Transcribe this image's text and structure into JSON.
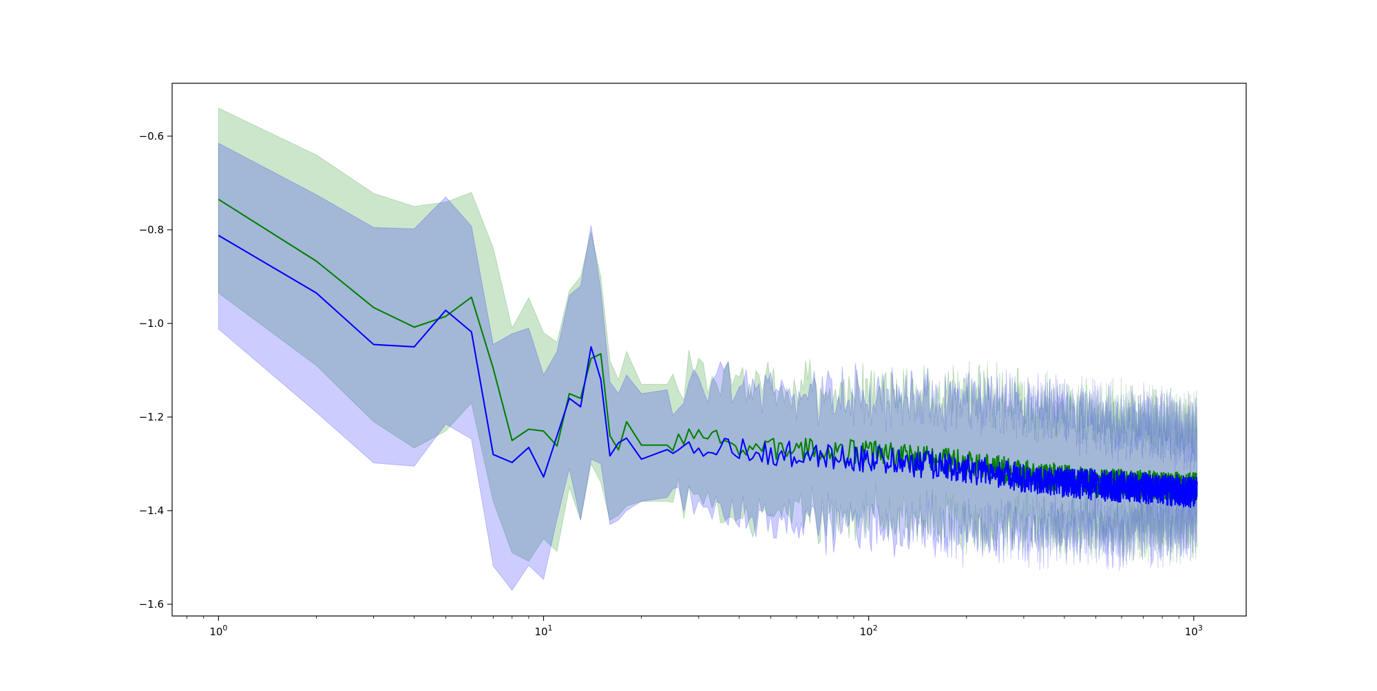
{
  "chart_data": {
    "type": "line",
    "title": "",
    "xlabel": "",
    "ylabel": "",
    "xscale": "log",
    "xlim": [
      0.72,
      1450
    ],
    "ylim": [
      -1.625,
      -0.487
    ],
    "grid": false,
    "legend": "none",
    "x_ticks": [
      {
        "value": 1,
        "base": "10",
        "exp": "0"
      },
      {
        "value": 10,
        "base": "10",
        "exp": "1"
      },
      {
        "value": 100,
        "base": "10",
        "exp": "2"
      },
      {
        "value": 1000,
        "base": "10",
        "exp": "3"
      }
    ],
    "y_ticks": [
      {
        "value": -0.6,
        "label": "−0.6"
      },
      {
        "value": -0.8,
        "label": "−0.8"
      },
      {
        "value": -1.0,
        "label": "−1.0"
      },
      {
        "value": -1.2,
        "label": "−1.2"
      },
      {
        "value": -1.4,
        "label": "−1.4"
      },
      {
        "value": -1.6,
        "label": "−1.6"
      }
    ],
    "series": [
      {
        "color": "#008000",
        "band_color": "#008000",
        "band_opacity": 0.2,
        "anchors_x": [
          1,
          2,
          3,
          4,
          5,
          6,
          7,
          8,
          9,
          10,
          11,
          12,
          13,
          14,
          15,
          16,
          17,
          18,
          20,
          25,
          30,
          40,
          60,
          100,
          200,
          300,
          500,
          1000
        ],
        "anchors_mean": [
          -0.735,
          -0.867,
          -0.966,
          -1.008,
          -0.985,
          -0.944,
          -1.096,
          -1.25,
          -1.226,
          -1.23,
          -1.262,
          -1.15,
          -1.16,
          -1.075,
          -1.065,
          -1.24,
          -1.27,
          -1.21,
          -1.26,
          -1.26,
          -1.24,
          -1.265,
          -1.27,
          -1.275,
          -1.3,
          -1.32,
          -1.34,
          -1.35
        ],
        "anchors_upper": [
          -0.54,
          -0.64,
          -0.722,
          -0.75,
          -0.741,
          -0.72,
          -0.838,
          -1.01,
          -0.945,
          -1.02,
          -1.04,
          -0.93,
          -0.9,
          -0.805,
          -0.9,
          -1.08,
          -1.12,
          -1.06,
          -1.13,
          -1.13,
          -1.11,
          -1.13,
          -1.14,
          -1.15,
          -1.15,
          -1.17,
          -1.19,
          -1.22
        ],
        "anchors_lower": [
          -0.935,
          -1.09,
          -1.21,
          -1.266,
          -1.23,
          -1.17,
          -1.38,
          -1.49,
          -1.508,
          -1.46,
          -1.487,
          -1.35,
          -1.42,
          -1.3,
          -1.34,
          -1.42,
          -1.41,
          -1.39,
          -1.38,
          -1.38,
          -1.37,
          -1.41,
          -1.41,
          -1.41,
          -1.43,
          -1.43,
          -1.44,
          -1.43
        ],
        "noise_amp": 0.022,
        "seed": 7
      },
      {
        "color": "#0000ff",
        "band_color": "#0000ff",
        "band_opacity": 0.2,
        "anchors_x": [
          1,
          2,
          3,
          4,
          5,
          6,
          7,
          8,
          9,
          10,
          11,
          12,
          13,
          14,
          15,
          16,
          17,
          18,
          20,
          25,
          30,
          40,
          60,
          100,
          200,
          300,
          500,
          1000
        ],
        "anchors_mean": [
          -0.812,
          -0.935,
          -1.045,
          -1.05,
          -0.972,
          -1.018,
          -1.28,
          -1.297,
          -1.265,
          -1.328,
          -1.24,
          -1.16,
          -1.178,
          -1.05,
          -1.12,
          -1.283,
          -1.255,
          -1.245,
          -1.29,
          -1.265,
          -1.26,
          -1.27,
          -1.28,
          -1.29,
          -1.31,
          -1.33,
          -1.345,
          -1.36
        ],
        "anchors_upper": [
          -0.615,
          -0.725,
          -0.795,
          -0.798,
          -0.73,
          -0.792,
          -1.045,
          -1.022,
          -1.01,
          -1.11,
          -1.06,
          -0.94,
          -0.92,
          -0.79,
          -0.93,
          -1.125,
          -1.15,
          -1.11,
          -1.15,
          -1.14,
          -1.12,
          -1.13,
          -1.15,
          -1.16,
          -1.16,
          -1.18,
          -1.2,
          -1.23
        ],
        "anchors_lower": [
          -1.012,
          -1.19,
          -1.298,
          -1.305,
          -1.215,
          -1.247,
          -1.518,
          -1.57,
          -1.517,
          -1.547,
          -1.418,
          -1.31,
          -1.42,
          -1.29,
          -1.3,
          -1.43,
          -1.42,
          -1.4,
          -1.38,
          -1.37,
          -1.38,
          -1.42,
          -1.42,
          -1.43,
          -1.44,
          -1.44,
          -1.45,
          -1.43
        ],
        "noise_amp": 0.024,
        "seed": 19
      }
    ]
  }
}
